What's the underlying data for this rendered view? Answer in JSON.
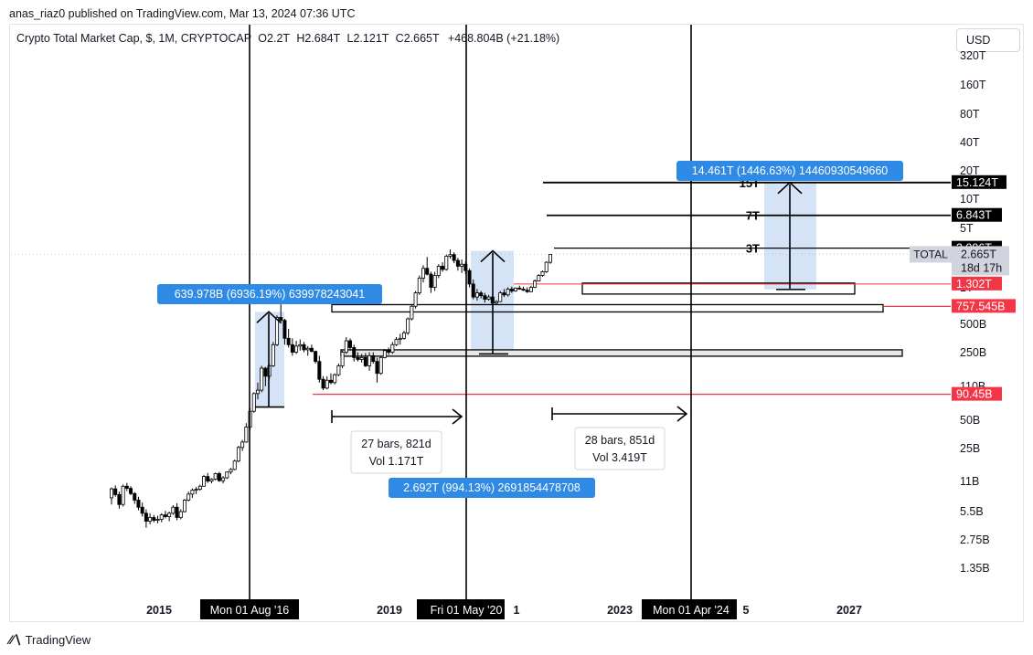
{
  "publisher_line": "anas_riaz0 published on TradingView.com, Mar 13, 2024 07:36 UTC",
  "legend": {
    "symbol": "Crypto Total Market Cap, $, 1M, CRYPTOCAP",
    "open_label": "O",
    "open": "2.2T",
    "high_label": "H",
    "high": "2.684T",
    "low_label": "L",
    "low": "2.121T",
    "close_label": "C",
    "close": "2.665T",
    "change": "+468.804B (+21.18%)"
  },
  "currency_button": "USD",
  "footer_brand": "TradingView",
  "chart_data": {
    "type": "candlestick",
    "y_scale": "log",
    "y_tick_labels": [
      "320T",
      "160T",
      "80T",
      "40T",
      "20T",
      "10T",
      "5T",
      "1T",
      "500B",
      "250B",
      "110B",
      "50B",
      "25B",
      "11B",
      "5.5B",
      "2.75B",
      "1.35B"
    ],
    "x_tick_labels": [
      "2015",
      "2019",
      "2023",
      "2027"
    ],
    "x_partial_labels": [
      "1",
      "5"
    ],
    "vertical_marker_labels": [
      "Mon 01 Aug '16",
      "Fri 01 May '20",
      "Mon 01 Apr '24"
    ],
    "price_labels": [
      {
        "text": "15.124T",
        "color": "#000000"
      },
      {
        "text": "6.843T",
        "color": "#000000"
      },
      {
        "text": "3.096T",
        "color": "#000000"
      },
      {
        "text": "1.302T",
        "color": "#f23645"
      },
      {
        "text": "757.545B",
        "color": "#f23645"
      },
      {
        "text": "90.45B",
        "color": "#f23645"
      }
    ],
    "current_price": {
      "symbol": "TOTAL",
      "value": "2.665T",
      "countdown": "18d 17h"
    },
    "level_labels": [
      "15T",
      "7T",
      "3T"
    ],
    "measure_labels": [
      "639.978B (6936.19%) 639978243041",
      "2.692T (994.13%) 2691854478708",
      "14.461T (1446.63%) 14460930549660"
    ],
    "range_boxes": [
      {
        "bars": "27 bars, 821d",
        "vol": "Vol 1.171T"
      },
      {
        "bars": "28 bars, 851d",
        "vol": "Vol 3.419T"
      }
    ],
    "candles": [
      [
        7.4,
        9.5,
        6.3,
        9.2
      ],
      [
        9.2,
        10.0,
        7.6,
        8.0
      ],
      [
        8.0,
        8.6,
        5.7,
        6.3
      ],
      [
        6.3,
        10.2,
        6.0,
        9.8
      ],
      [
        9.8,
        10.6,
        8.7,
        9.3
      ],
      [
        9.3,
        9.8,
        7.9,
        8.2
      ],
      [
        8.2,
        8.5,
        6.4,
        7.0
      ],
      [
        7.0,
        7.6,
        5.5,
        5.9
      ],
      [
        5.9,
        6.6,
        4.7,
        5.1
      ],
      [
        5.1,
        5.6,
        3.6,
        4.2
      ],
      [
        4.2,
        5.1,
        3.9,
        4.6
      ],
      [
        4.6,
        4.9,
        4.1,
        4.3
      ],
      [
        4.3,
        4.8,
        4.0,
        4.4
      ],
      [
        4.4,
        5.1,
        4.1,
        4.9
      ],
      [
        4.9,
        5.4,
        4.5,
        4.7
      ],
      [
        4.7,
        5.3,
        4.2,
        5.1
      ],
      [
        5.1,
        6.2,
        4.9,
        5.9
      ],
      [
        5.9,
        6.5,
        4.3,
        4.6
      ],
      [
        4.6,
        5.6,
        4.4,
        5.3
      ],
      [
        5.3,
        7.2,
        5.2,
        7.0
      ],
      [
        7.0,
        8.6,
        6.8,
        8.1
      ],
      [
        8.1,
        9.3,
        7.4,
        8.9
      ],
      [
        8.9,
        9.6,
        8.1,
        9.1
      ],
      [
        9.1,
        10.2,
        8.8,
        9.8
      ],
      [
        9.8,
        12.9,
        9.7,
        12.4
      ],
      [
        12.4,
        13.5,
        10.6,
        11.1
      ],
      [
        11.1,
        11.9,
        10.5,
        11.6
      ],
      [
        11.6,
        13.6,
        11.3,
        13.3
      ],
      [
        13.3,
        13.9,
        10.9,
        11.2
      ],
      [
        11.2,
        12.5,
        10.5,
        12.0
      ],
      [
        12.0,
        14.0,
        11.7,
        13.8
      ],
      [
        13.8,
        15.2,
        13.1,
        14.7
      ],
      [
        14.7,
        18.6,
        14.4,
        18.0
      ],
      [
        18.0,
        26.0,
        17.5,
        25.0
      ],
      [
        25.0,
        30.0,
        23.0,
        28.5
      ],
      [
        28.5,
        45.0,
        28.0,
        41.0
      ],
      [
        41.0,
        65.0,
        38.0,
        60.0
      ],
      [
        60.0,
        95.0,
        58.0,
        92.0
      ],
      [
        92.0,
        120.0,
        80.0,
        100.0
      ],
      [
        100.0,
        180.0,
        95.0,
        170.0
      ],
      [
        170.0,
        175.0,
        110.0,
        140.0
      ],
      [
        140.0,
        190.0,
        130.0,
        180.0
      ],
      [
        180.0,
        320.0,
        175.0,
        300.0
      ],
      [
        300.0,
        610.0,
        290.0,
        580.0
      ],
      [
        580.0,
        830.0,
        500.0,
        540.0
      ],
      [
        540.0,
        560.0,
        300.0,
        350.0
      ],
      [
        350.0,
        440.0,
        280.0,
        300.0
      ],
      [
        300.0,
        350.0,
        230.0,
        250.0
      ],
      [
        250.0,
        330.0,
        240.0,
        290.0
      ],
      [
        290.0,
        340.0,
        260.0,
        300.0
      ],
      [
        300.0,
        320.0,
        250.0,
        265.0
      ],
      [
        265.0,
        290.0,
        230.0,
        275.0
      ],
      [
        275.0,
        300.0,
        250.0,
        255.0
      ],
      [
        255.0,
        260.0,
        190.0,
        200.0
      ],
      [
        200.0,
        230.0,
        120.0,
        130.0
      ],
      [
        130.0,
        140.0,
        100.0,
        105.0
      ],
      [
        105.0,
        140.0,
        102.0,
        127.0
      ],
      [
        127.0,
        150.0,
        115.0,
        120.0
      ],
      [
        120.0,
        150.0,
        115.0,
        145.0
      ],
      [
        145.0,
        190.0,
        140.0,
        180.0
      ],
      [
        180.0,
        260.0,
        170.0,
        250.0
      ],
      [
        250.0,
        360.0,
        240.0,
        330.0
      ],
      [
        330.0,
        350.0,
        260.0,
        280.0
      ],
      [
        280.0,
        300.0,
        200.0,
        220.0
      ],
      [
        220.0,
        250.0,
        200.0,
        210.0
      ],
      [
        210.0,
        240.0,
        195.0,
        220.0
      ],
      [
        220.0,
        245.0,
        175.0,
        180.0
      ],
      [
        180.0,
        250.0,
        160.0,
        230.0
      ],
      [
        230.0,
        250.0,
        190.0,
        200.0
      ],
      [
        200.0,
        220.0,
        120.0,
        150.0
      ],
      [
        150.0,
        230.0,
        145.0,
        220.0
      ],
      [
        220.0,
        270.0,
        215.0,
        260.0
      ],
      [
        260.0,
        280.0,
        235.0,
        250.0
      ],
      [
        250.0,
        320.0,
        240.0,
        300.0
      ],
      [
        300.0,
        360.0,
        290.0,
        340.0
      ],
      [
        340.0,
        390.0,
        300.0,
        350.0
      ],
      [
        350.0,
        420.0,
        340.0,
        400.0
      ],
      [
        400.0,
        580.0,
        380.0,
        560.0
      ],
      [
        560.0,
        780.0,
        540.0,
        760.0
      ],
      [
        760.0,
        1100.0,
        720.0,
        1050.0
      ],
      [
        1050.0,
        1600.0,
        1000.0,
        1500.0
      ],
      [
        1500.0,
        2050.0,
        1350.0,
        1900.0
      ],
      [
        1900.0,
        2500.0,
        1600.0,
        1650.0
      ],
      [
        1650.0,
        1750.0,
        1050.0,
        1200.0
      ],
      [
        1200.0,
        1750.0,
        1100.0,
        1600.0
      ],
      [
        1600.0,
        2100.0,
        1500.0,
        2000.0
      ],
      [
        2000.0,
        2200.0,
        1750.0,
        1850.0
      ],
      [
        1850.0,
        2650.0,
        1800.0,
        2550.0
      ],
      [
        2550.0,
        3000.0,
        2400.0,
        2650.0
      ],
      [
        2650.0,
        2800.0,
        2150.0,
        2300.0
      ],
      [
        2300.0,
        2450.0,
        1800.0,
        2000.0
      ],
      [
        2000.0,
        2350.0,
        1700.0,
        2100.0
      ],
      [
        2100.0,
        2250.0,
        1650.0,
        1800.0
      ],
      [
        1800.0,
        1900.0,
        1200.0,
        1300.0
      ],
      [
        1300.0,
        1450.0,
        900.0,
        950.0
      ],
      [
        950.0,
        1150.0,
        870.0,
        1050.0
      ],
      [
        1050.0,
        1100.0,
        920.0,
        980.0
      ],
      [
        980.0,
        1050.0,
        830.0,
        900.0
      ],
      [
        900.0,
        1000.0,
        870.0,
        950.0
      ],
      [
        950.0,
        980.0,
        780.0,
        820.0
      ],
      [
        820.0,
        880.0,
        780.0,
        850.0
      ],
      [
        850.0,
        1100.0,
        840.0,
        1050.0
      ],
      [
        1050.0,
        1150.0,
        950.0,
        1000.0
      ],
      [
        1000.0,
        1200.0,
        960.0,
        1150.0
      ],
      [
        1150.0,
        1220.0,
        1050.0,
        1100.0
      ],
      [
        1100.0,
        1200.0,
        1080.0,
        1180.0
      ],
      [
        1180.0,
        1250.0,
        1130.0,
        1150.0
      ],
      [
        1150.0,
        1220.0,
        1100.0,
        1120.0
      ],
      [
        1120.0,
        1200.0,
        1050.0,
        1080.0
      ],
      [
        1080.0,
        1250.0,
        1070.0,
        1200.0
      ],
      [
        1200.0,
        1450.0,
        1180.0,
        1400.0
      ],
      [
        1400.0,
        1650.0,
        1380.0,
        1600.0
      ],
      [
        1600.0,
        1800.0,
        1550.0,
        1750.0
      ],
      [
        1750.0,
        2250.0,
        1700.0,
        2200.0
      ],
      [
        2200.0,
        2684.0,
        2121.0,
        2665.0
      ]
    ]
  }
}
